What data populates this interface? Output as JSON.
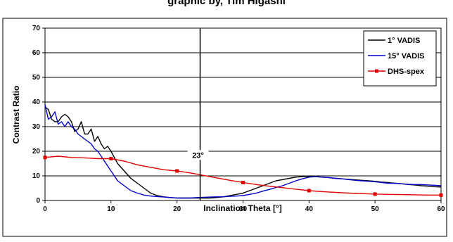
{
  "chart_data": {
    "type": "line",
    "title": "",
    "partial_title": "graphic by, Tim Higashi",
    "xlabel": "Inclination Theta [°]",
    "ylabel": "Contrast Ratio",
    "xlim": [
      0,
      60
    ],
    "ylim": [
      0,
      70
    ],
    "x_ticks": [
      "0",
      "10",
      "20",
      "30",
      "40",
      "50",
      "60"
    ],
    "y_ticks": [
      "0",
      "10",
      "20",
      "30",
      "40",
      "50",
      "60",
      "70"
    ],
    "grid": "horizontal",
    "legend_position": "top-right",
    "annotation": {
      "x": 23.5,
      "label": "23°"
    },
    "series": [
      {
        "name": "1° VADIS",
        "color": "#000000",
        "marker": "none",
        "x": [
          0,
          0.5,
          1,
          1.5,
          2,
          2.5,
          3,
          3.5,
          4,
          4.5,
          5,
          5.5,
          6,
          6.5,
          7,
          7.5,
          8,
          8.5,
          9,
          9.5,
          10,
          11,
          12,
          13,
          14,
          15,
          16,
          17,
          18,
          19,
          20,
          21,
          22,
          23,
          24,
          25,
          26,
          27,
          28,
          29,
          30,
          31,
          32,
          33,
          34,
          35,
          36,
          37,
          38,
          39,
          40,
          41,
          42,
          43,
          44,
          45,
          46,
          47,
          48,
          49,
          50,
          51,
          52,
          53,
          54,
          55,
          56,
          57,
          58,
          59,
          60
        ],
        "values": [
          38,
          37,
          33,
          32,
          32,
          34,
          35,
          34,
          32,
          28,
          29,
          32,
          27,
          27,
          29,
          24,
          26,
          23,
          21,
          22,
          20,
          15,
          12,
          9,
          7,
          5,
          3,
          2,
          1.5,
          1.2,
          1,
          1,
          1,
          1,
          1,
          1,
          1.2,
          1.5,
          2,
          2.5,
          3,
          4,
          5,
          6,
          7,
          8,
          8.5,
          9,
          9.5,
          9.7,
          9.8,
          9.7,
          9.5,
          9.3,
          9,
          8.8,
          8.6,
          8.4,
          8.2,
          8,
          7.8,
          7.5,
          7.3,
          7,
          6.8,
          6.5,
          6.3,
          6,
          5.8,
          5.6,
          5.5
        ]
      },
      {
        "name": "15° VADIS",
        "color": "#0000cc",
        "marker": "none",
        "x": [
          0,
          0.5,
          1,
          1.5,
          2,
          2.5,
          3,
          3.5,
          4,
          4.5,
          5,
          5.5,
          6,
          6.5,
          7,
          7.5,
          8,
          8.5,
          9,
          9.5,
          10,
          11,
          12,
          13,
          14,
          15,
          16,
          17,
          18,
          19,
          20,
          21,
          22,
          23,
          24,
          25,
          26,
          27,
          28,
          29,
          30,
          31,
          32,
          33,
          34,
          35,
          36,
          37,
          38,
          39,
          40,
          41,
          42,
          43,
          44,
          45,
          46,
          47,
          48,
          49,
          50,
          51,
          52,
          53,
          54,
          55,
          56,
          57,
          58,
          59,
          60
        ],
        "values": [
          39,
          33,
          34,
          36,
          31,
          32,
          30,
          32,
          30,
          29,
          27,
          26,
          25,
          24,
          23,
          21,
          20,
          18,
          16,
          14,
          12,
          8,
          6,
          4,
          3,
          2.2,
          1.8,
          1.6,
          1.4,
          1.2,
          1,
          1,
          1,
          1.2,
          1.3,
          1.4,
          1.5,
          1.5,
          1.7,
          1.8,
          2,
          2.5,
          3,
          3.8,
          4.5,
          5.3,
          6,
          7,
          8,
          8.8,
          9.5,
          9.7,
          9.5,
          9.3,
          9,
          8.8,
          8.5,
          8.2,
          8,
          7.8,
          7.6,
          7.3,
          7,
          7,
          6.8,
          6.6,
          6.5,
          6.5,
          6.3,
          6.2,
          6
        ]
      },
      {
        "name": "DHS-spex",
        "color": "#e00000",
        "marker": "square",
        "x": [
          0,
          2,
          4,
          6,
          8,
          10,
          12,
          14,
          16,
          18,
          20,
          22,
          24,
          26,
          28,
          30,
          32,
          34,
          36,
          38,
          40,
          42,
          44,
          46,
          48,
          50,
          52,
          54,
          56,
          58,
          60
        ],
        "values": [
          17.5,
          18,
          17.5,
          17.3,
          17,
          17,
          16,
          14.5,
          13.5,
          12.5,
          12,
          11.2,
          10.2,
          9.2,
          8.2,
          7.3,
          6.5,
          5.8,
          5.2,
          4.6,
          4,
          3.6,
          3.3,
          3,
          2.8,
          2.6,
          2.5,
          2.4,
          2.3,
          2.2,
          2.2
        ]
      }
    ]
  }
}
